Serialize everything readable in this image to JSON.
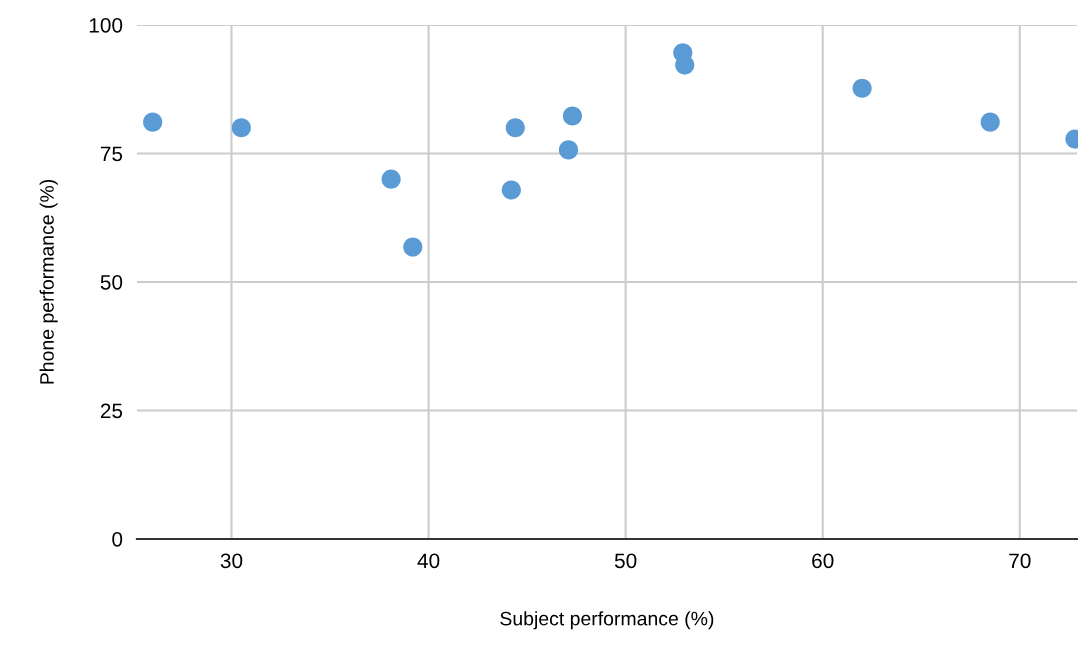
{
  "chart_data": {
    "type": "scatter",
    "xlabel": "Subject performance (%)",
    "ylabel": "Phone performance (%)",
    "x": [
      26.0,
      30.5,
      38.1,
      39.2,
      44.2,
      44.4,
      47.1,
      47.3,
      52.9,
      53.0,
      62.0,
      68.5,
      72.8
    ],
    "values": [
      81.1,
      80.0,
      70.0,
      56.8,
      67.9,
      80.0,
      75.7,
      82.3,
      94.6,
      92.2,
      87.7,
      81.1,
      77.8
    ],
    "color": "#5b9bd5",
    "marker": "circle",
    "xlim": [
      25.2,
      72.9
    ],
    "xticks": [
      30,
      40,
      50,
      60,
      70
    ],
    "ylim": [
      0,
      100
    ],
    "yticks": [
      0,
      25,
      50,
      75,
      100
    ],
    "grid": true,
    "legend": false
  }
}
